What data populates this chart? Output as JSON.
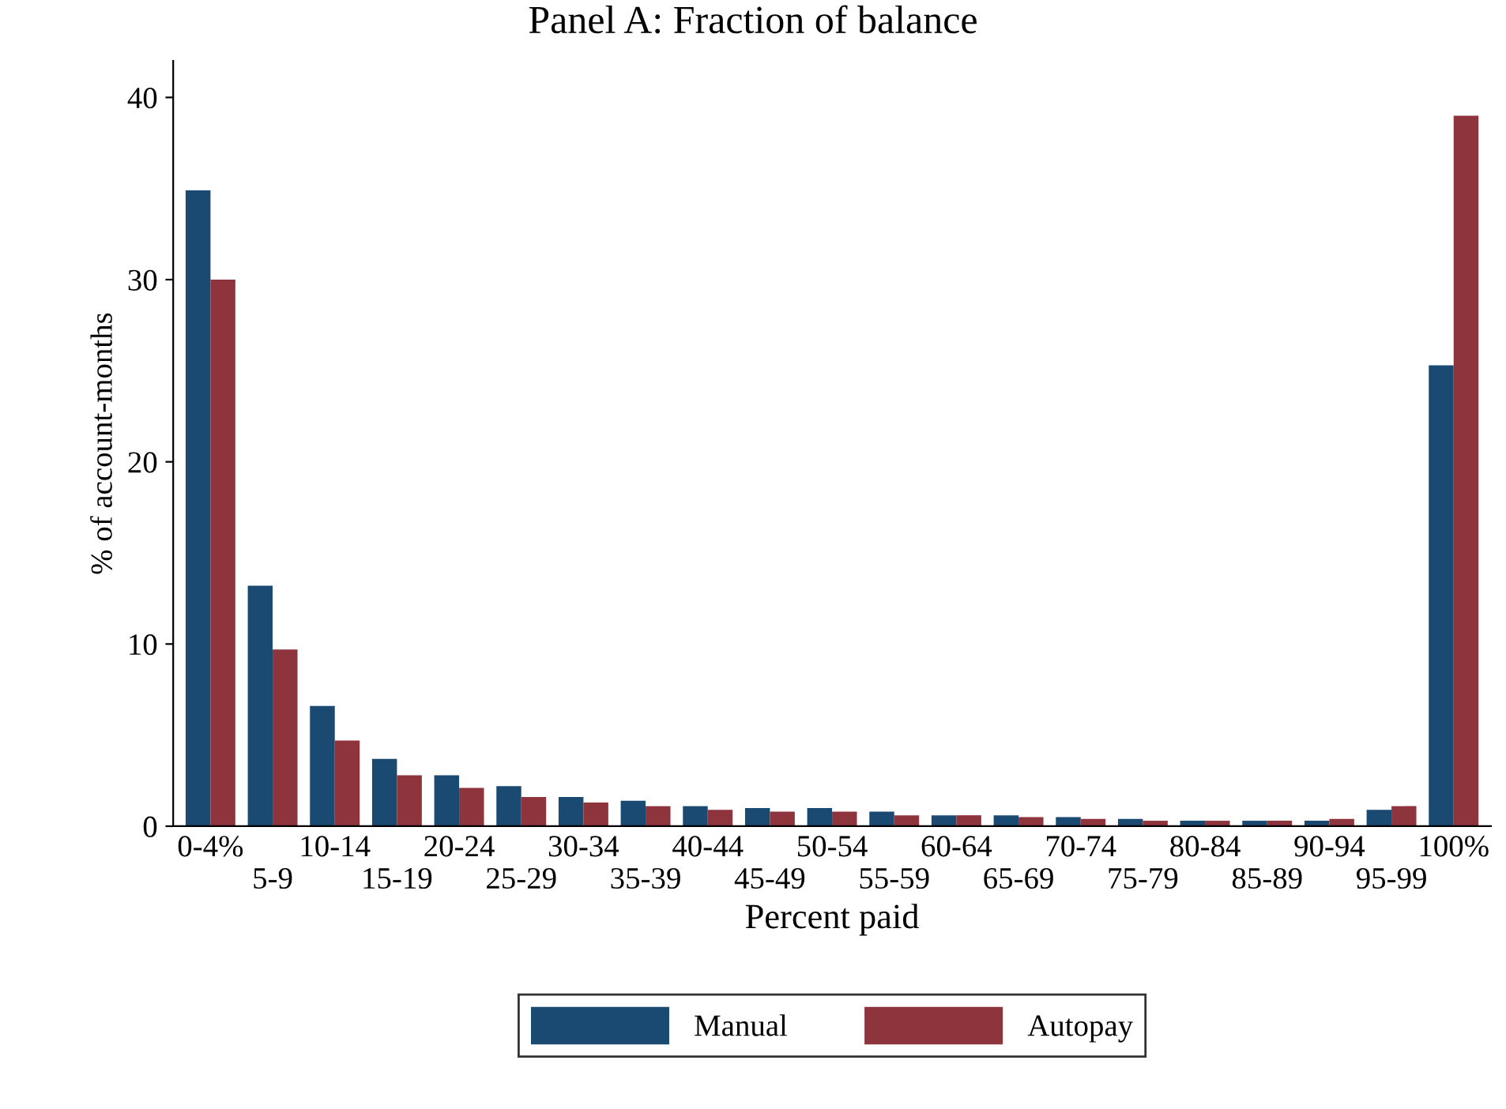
{
  "chart_data": {
    "type": "bar",
    "title": "Panel A: Fraction of balance",
    "xlabel": "Percent paid",
    "ylabel": "% of account-months",
    "categories": [
      "0-4%",
      "5-9",
      "10-14",
      "15-19",
      "20-24",
      "25-29",
      "30-34",
      "35-39",
      "40-44",
      "45-49",
      "50-54",
      "55-59",
      "60-64",
      "65-69",
      "70-74",
      "75-79",
      "80-84",
      "85-89",
      "90-94",
      "95-99",
      "100%"
    ],
    "series": [
      {
        "name": "Manual",
        "color": "#1a4a72",
        "values": [
          34.9,
          13.2,
          6.6,
          3.7,
          2.8,
          2.2,
          1.6,
          1.4,
          1.1,
          1.0,
          1.0,
          0.8,
          0.6,
          0.6,
          0.5,
          0.4,
          0.3,
          0.3,
          0.3,
          0.9,
          25.3
        ]
      },
      {
        "name": "Autopay",
        "color": "#8e343c",
        "values": [
          30.0,
          9.7,
          4.7,
          2.8,
          2.1,
          1.6,
          1.3,
          1.1,
          0.9,
          0.8,
          0.8,
          0.6,
          0.6,
          0.5,
          0.4,
          0.3,
          0.3,
          0.3,
          0.4,
          1.1,
          39.0
        ]
      }
    ],
    "ylim": [
      0,
      42
    ],
    "yticks": [
      0,
      10,
      20,
      30,
      40
    ],
    "grid": false,
    "legend": "bottom"
  }
}
